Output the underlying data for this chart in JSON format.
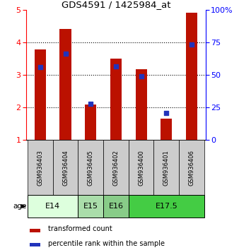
{
  "title": "GDS4591 / 1425984_at",
  "samples": [
    "GSM936403",
    "GSM936404",
    "GSM936405",
    "GSM936402",
    "GSM936400",
    "GSM936401",
    "GSM936406"
  ],
  "red_values": [
    3.78,
    4.42,
    2.1,
    3.5,
    3.18,
    1.65,
    4.92
  ],
  "blue_values": [
    3.25,
    3.65,
    2.12,
    3.27,
    2.97,
    1.83,
    3.93
  ],
  "ylim_left": [
    1,
    5
  ],
  "ylim_right": [
    0,
    100
  ],
  "yticks_left": [
    1,
    2,
    3,
    4,
    5
  ],
  "yticks_right": [
    0,
    25,
    50,
    75,
    100
  ],
  "ytick_labels_right": [
    "0",
    "25",
    "50",
    "75",
    "100%"
  ],
  "bar_color": "#bb1100",
  "blue_color": "#2233bb",
  "age_groups": [
    {
      "label": "E14",
      "start": 0,
      "end": 1,
      "color": "#ddffdd"
    },
    {
      "label": "E15",
      "start": 2,
      "end": 2,
      "color": "#aaddaa"
    },
    {
      "label": "E16",
      "start": 3,
      "end": 3,
      "color": "#88cc88"
    },
    {
      "label": "E17.5",
      "start": 4,
      "end": 6,
      "color": "#44cc44"
    }
  ],
  "sample_bg_color": "#cccccc",
  "legend_red_label": "transformed count",
  "legend_blue_label": "percentile rank within the sample",
  "bar_width": 0.45,
  "blue_square_size": 25
}
